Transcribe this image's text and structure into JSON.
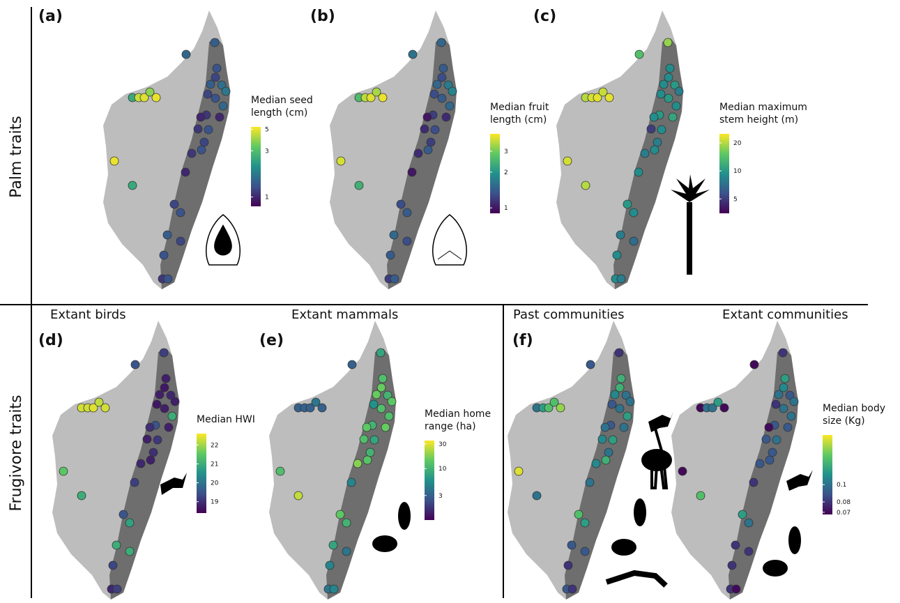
{
  "row_labels": [
    "Palm traits",
    "Frugivore traits"
  ],
  "panels": [
    {
      "label": "(a)",
      "legend": {
        "title": [
          "Median seed",
          "length (cm)"
        ],
        "lim": [
          0.8,
          5.3
        ],
        "log": true,
        "ticks": [
          1,
          3,
          5
        ]
      },
      "maps": [
        {
          "values": [
            1.5,
            1.4,
            1.3,
            1.2,
            1.4,
            1.6,
            1.7,
            1.2,
            1.3,
            1.5,
            1.1,
            1.0,
            1.1,
            1.3,
            1.0,
            1.2,
            1.3,
            1.1,
            1.0,
            1.3,
            1.2,
            1.4,
            1.2,
            1.3,
            1.1,
            1.3,
            2.5,
            4.5,
            4.8,
            3.8,
            5,
            5,
            2.5
          ]
        }
      ]
    },
    {
      "label": "(b)",
      "legend": {
        "title": [
          "Median fruit",
          "length (cm)"
        ],
        "lim": [
          0.9,
          4.2
        ],
        "log": true,
        "ticks": [
          1,
          2,
          3
        ]
      },
      "maps": [
        {
          "values": [
            1.6,
            1.5,
            1.4,
            1.3,
            1.5,
            1.7,
            1.8,
            1.3,
            1.4,
            1.5,
            1.2,
            1.0,
            1.1,
            1.3,
            1.1,
            1.2,
            1.4,
            1.1,
            1.0,
            1.4,
            1.3,
            1.5,
            1.3,
            1.4,
            1.2,
            1.4,
            2.6,
            3.6,
            3.9,
            3.4,
            4,
            3.8,
            2.4
          ]
        }
      ]
    },
    {
      "label": "(c)",
      "legend": {
        "title": [
          "Median maximum",
          "stem height (m)"
        ],
        "lim": [
          3.5,
          25
        ],
        "log": true,
        "ticks": [
          5,
          10,
          20
        ]
      },
      "maps": [
        {
          "values": [
            14,
            18,
            9,
            9,
            9,
            10,
            8,
            9,
            10,
            9,
            10,
            9,
            5,
            9,
            11,
            8,
            9,
            8,
            9,
            9,
            10,
            8,
            7,
            9,
            9,
            8,
            20,
            22,
            23,
            21,
            23,
            22,
            20
          ]
        }
      ]
    },
    {
      "label": "(d)",
      "legend": {
        "title": [
          "Median HWI"
        ],
        "lim": [
          18.4,
          22.6
        ],
        "log": false,
        "ticks": [
          19,
          20,
          21,
          22
        ]
      },
      "maps": [
        {
          "subtitle": "Extant birds",
          "values": [
            19.5,
            19.2,
            18.8,
            18.7,
            18.8,
            18.9,
            18.8,
            18.7,
            18.8,
            21,
            19.5,
            19,
            18.8,
            19.1,
            18.8,
            19,
            18.8,
            18.9,
            19.2,
            20.8,
            19.5,
            21,
            21,
            19.3,
            18.9,
            19.2,
            22.3,
            22.3,
            22.4,
            22.2,
            22.3,
            21.5,
            21
          ]
        }
      ]
    },
    {
      "label": "(e)",
      "legend": {
        "title": [
          "Median home",
          "range (ha)"
        ],
        "lim": [
          1,
          35
        ],
        "log": true,
        "ticks": [
          3,
          10,
          30
        ]
      },
      "maps": [
        {
          "subtitle": "Extant mammals",
          "values": [
            3,
            8,
            12,
            15,
            15,
            10,
            14,
            6,
            12,
            12,
            10,
            14,
            12,
            8,
            15,
            10,
            13,
            18,
            5,
            10,
            14,
            8,
            4,
            5,
            4,
            5,
            3,
            3,
            3,
            4,
            3,
            12,
            25
          ]
        }
      ]
    },
    {
      "label": "(f)",
      "legend": {
        "title": [
          "Median body",
          "size (Kg)"
        ],
        "lim": [
          0.068,
          0.19
        ],
        "log": true,
        "ticks": [
          0.07,
          0.08,
          0.1
        ]
      },
      "maps": [
        {
          "subtitle": "Past communities",
          "values": [
            0.09,
            0.08,
            0.13,
            0.13,
            0.11,
            0.1,
            0.1,
            0.09,
            0.1,
            0.12,
            0.09,
            0.1,
            0.11,
            0.12,
            0.1,
            0.1,
            0.13,
            0.11,
            0.1,
            0.12,
            0.14,
            0.09,
            0.09,
            0.08,
            0.09,
            0.08,
            0.1,
            0.12,
            0.14,
            0.14,
            0.16,
            0.18,
            0.1
          ]
        },
        {
          "subtitle": "Extant communities",
          "values": [
            0.07,
            0.08,
            0.12,
            0.11,
            0.1,
            0.09,
            0.1,
            0.08,
            0.1,
            0.1,
            0.09,
            0.07,
            0.09,
            0.1,
            0.09,
            0.09,
            0.09,
            0.09,
            0.08,
            0.1,
            0.12,
            0.08,
            0.08,
            0.08,
            0.08,
            0.07,
            0.07,
            0.1,
            0.1,
            0.12,
            0.07,
            0.07,
            0.14
          ]
        }
      ]
    }
  ]
}
